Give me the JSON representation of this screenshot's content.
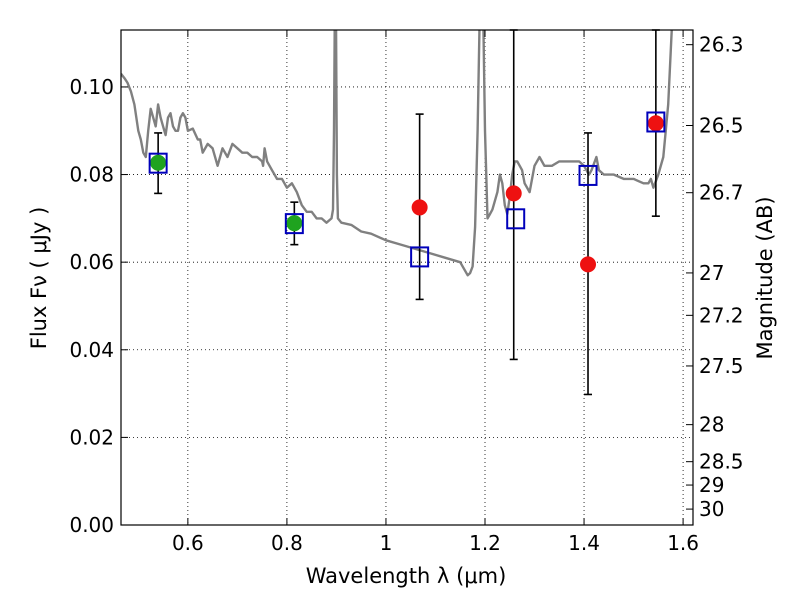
{
  "chart_data": {
    "type": "scatter",
    "title": "",
    "xlabel": "Wavelength  λ (μm)",
    "ylabel_left": "Flux  Fν  ( μJy )",
    "ylabel_right": "Magnitude (AB)",
    "xlim": [
      0.465,
      1.62
    ],
    "ylim": [
      0.0,
      0.113
    ],
    "grid": true,
    "grid_style": "dotted",
    "x_ticks": [
      0.6,
      0.8,
      1.0,
      1.2,
      1.4,
      1.6
    ],
    "x_tick_labels": [
      "0.6",
      "0.8",
      "1",
      "1.2",
      "1.4",
      "1.6"
    ],
    "y_ticks": [
      0.0,
      0.02,
      0.04,
      0.06,
      0.08,
      0.1
    ],
    "y_tick_labels": [
      "0.00",
      "0.02",
      "0.04",
      "0.06",
      "0.08",
      "0.10"
    ],
    "mag_ticks": [
      26.3,
      26.5,
      26.7,
      27,
      27.2,
      27.5,
      28,
      28.5,
      29,
      30
    ],
    "mag_tick_labels": [
      "26.3",
      "26.5",
      "26.7",
      "27",
      "27.2",
      "27.5",
      "28",
      "28.5",
      "29",
      "30"
    ],
    "colors": {
      "model": "#808080",
      "observed_green": "#1fa31f",
      "observed_red": "#ee1111",
      "model_box": "#0000bb",
      "errorbar": "#000000"
    },
    "series": [
      {
        "name": "Template spectrum",
        "kind": "line",
        "x": [
          0.465,
          0.472,
          0.478,
          0.485,
          0.492,
          0.5,
          0.505,
          0.51,
          0.515,
          0.52,
          0.525,
          0.53,
          0.535,
          0.54,
          0.545,
          0.55,
          0.555,
          0.56,
          0.565,
          0.57,
          0.575,
          0.58,
          0.585,
          0.59,
          0.595,
          0.6,
          0.61,
          0.62,
          0.625,
          0.63,
          0.64,
          0.65,
          0.66,
          0.67,
          0.68,
          0.69,
          0.7,
          0.71,
          0.72,
          0.73,
          0.74,
          0.75,
          0.752,
          0.755,
          0.76,
          0.77,
          0.78,
          0.79,
          0.8,
          0.81,
          0.82,
          0.83,
          0.84,
          0.85,
          0.86,
          0.87,
          0.88,
          0.89,
          0.893,
          0.895,
          0.897,
          0.899,
          0.901,
          0.903,
          0.91,
          0.93,
          0.95,
          0.97,
          1.0,
          1.03,
          1.06,
          1.09,
          1.12,
          1.15,
          1.165,
          1.17,
          1.175,
          1.18,
          1.185,
          1.19,
          1.193,
          1.196,
          1.2,
          1.205,
          1.21,
          1.215,
          1.22,
          1.225,
          1.23,
          1.235,
          1.24,
          1.245,
          1.25,
          1.255,
          1.26,
          1.265,
          1.27,
          1.275,
          1.28,
          1.29,
          1.3,
          1.31,
          1.32,
          1.335,
          1.35,
          1.37,
          1.39,
          1.4,
          1.41,
          1.415,
          1.42,
          1.425,
          1.43,
          1.44,
          1.46,
          1.48,
          1.5,
          1.52,
          1.53,
          1.535,
          1.54,
          1.55,
          1.56,
          1.57,
          1.58,
          1.59
        ],
        "y": [
          0.103,
          0.102,
          0.101,
          0.099,
          0.096,
          0.09,
          0.088,
          0.085,
          0.084,
          0.09,
          0.095,
          0.093,
          0.091,
          0.096,
          0.093,
          0.091,
          0.089,
          0.093,
          0.094,
          0.091,
          0.09,
          0.09,
          0.093,
          0.094,
          0.093,
          0.09,
          0.0905,
          0.088,
          0.088,
          0.085,
          0.087,
          0.086,
          0.082,
          0.086,
          0.084,
          0.087,
          0.086,
          0.085,
          0.085,
          0.084,
          0.084,
          0.083,
          0.082,
          0.086,
          0.083,
          0.081,
          0.079,
          0.079,
          0.077,
          0.078,
          0.076,
          0.073,
          0.0715,
          0.0715,
          0.07,
          0.07,
          0.069,
          0.07,
          0.072,
          0.09,
          0.12,
          0.12,
          0.08,
          0.07,
          0.069,
          0.0685,
          0.067,
          0.0665,
          0.065,
          0.064,
          0.063,
          0.062,
          0.061,
          0.06,
          0.057,
          0.0575,
          0.059,
          0.068,
          0.09,
          0.12,
          0.12,
          0.12,
          0.09,
          0.07,
          0.071,
          0.072,
          0.074,
          0.076,
          0.08,
          0.078,
          0.073,
          0.071,
          0.075,
          0.08,
          0.083,
          0.083,
          0.082,
          0.081,
          0.078,
          0.076,
          0.082,
          0.084,
          0.082,
          0.082,
          0.083,
          0.083,
          0.083,
          0.082,
          0.08,
          0.081,
          0.0825,
          0.084,
          0.081,
          0.08,
          0.08,
          0.079,
          0.079,
          0.078,
          0.078,
          0.079,
          0.077,
          0.08,
          0.084,
          0.096,
          0.12,
          0.12
        ]
      },
      {
        "name": "Observed (green)",
        "kind": "points",
        "x": [
          0.54,
          0.815
        ],
        "y": [
          0.0827,
          0.0689
        ]
      },
      {
        "name": "Observed (red)",
        "kind": "points",
        "x": [
          1.068,
          1.258,
          1.408,
          1.545
        ],
        "y": [
          0.0725,
          0.0757,
          0.0595,
          0.0917
        ]
      },
      {
        "name": "Model photometry",
        "kind": "open_squares",
        "x": [
          0.54,
          0.815,
          1.068,
          1.262,
          1.408,
          1.545
        ],
        "y": [
          0.0826,
          0.0688,
          0.0612,
          0.0699,
          0.0798,
          0.092
        ]
      },
      {
        "name": "Error bars",
        "kind": "errorbar",
        "x": [
          0.54,
          0.815,
          1.068,
          1.258,
          1.408,
          1.545
        ],
        "low": [
          0.0757,
          0.064,
          0.0515,
          0.0378,
          0.0298,
          0.0705
        ],
        "high": [
          0.0895,
          0.0737,
          0.0938,
          0.113,
          0.0895,
          0.113
        ]
      }
    ]
  }
}
